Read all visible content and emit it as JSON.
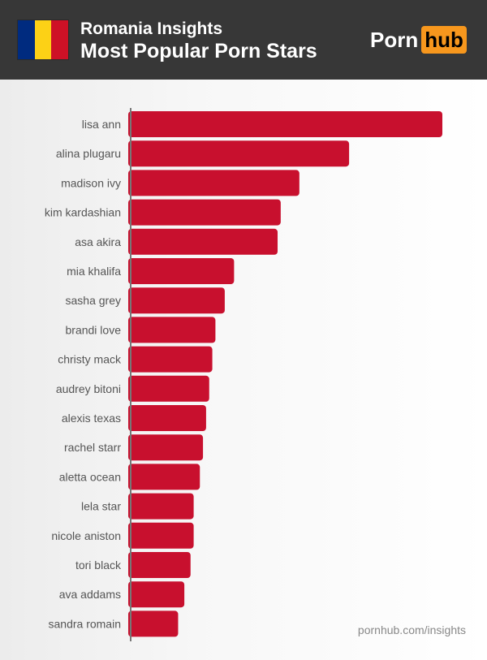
{
  "header": {
    "subtitle": "Romania Insights",
    "title": "Most Popular Porn Stars",
    "flag_colors": [
      "#002b7f",
      "#fcd116",
      "#ce1126"
    ],
    "logo": {
      "part1": "Porn",
      "part2": "hub"
    }
  },
  "footer": {
    "url": "pornhub.com/insights"
  },
  "chart_data": {
    "type": "bar",
    "orientation": "horizontal",
    "title": "Most Popular Porn Stars",
    "xlabel": "",
    "ylabel": "",
    "value_unit": "relative bar length (% of top)",
    "bar_color": "#c8102e",
    "grid": false,
    "categories": [
      "lisa ann",
      "alina plugaru",
      "madison ivy",
      "kim kardashian",
      "asa akira",
      "mia khalifa",
      "sasha grey",
      "brandi love",
      "christy mack",
      "audrey bitoni",
      "alexis texas",
      "rachel starr",
      "aletta ocean",
      "lela star",
      "nicole aniston",
      "tori black",
      "ava addams",
      "sandra romain"
    ],
    "values": [
      100,
      70,
      54,
      48,
      47,
      33,
      30,
      27,
      26,
      25,
      24,
      23,
      22,
      20,
      20,
      19,
      17,
      15
    ]
  }
}
